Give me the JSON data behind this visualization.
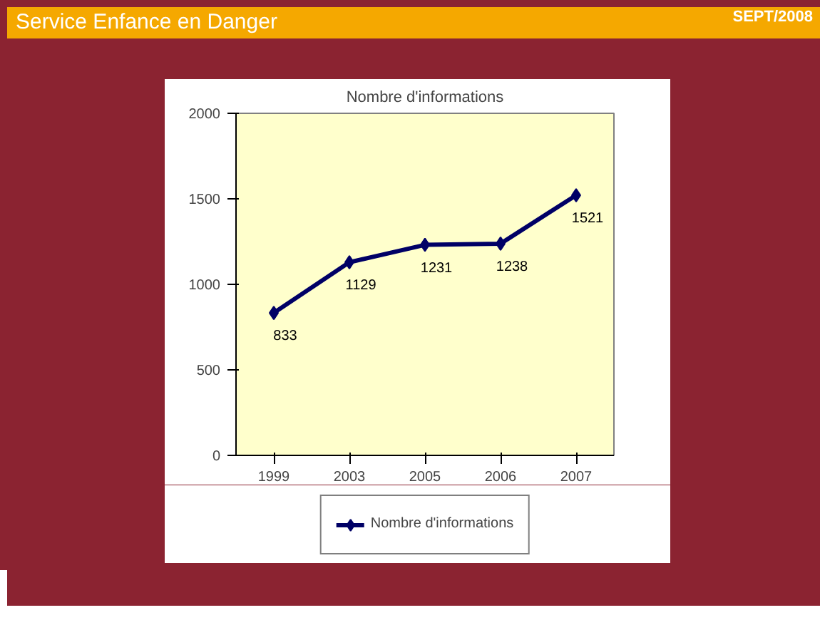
{
  "chart_data": {
    "type": "line",
    "title": "Nombre d'informations",
    "annotations": [
      "Service Enfance en Danger",
      "SEPT/2008"
    ],
    "categories": [
      "1999",
      "2003",
      "2005",
      "2006",
      "2007"
    ],
    "series": [
      {
        "name": "Nombre d'informations",
        "color": "#000066",
        "values": [
          833,
          1129,
          1231,
          1238,
          1521
        ]
      }
    ],
    "ylim": [
      0,
      2000
    ],
    "yticks": [
      0,
      500,
      1000,
      1500,
      2000
    ],
    "grid": false,
    "legend": "bottom",
    "marker": "diamond",
    "line_style": "solid",
    "data_labels": true
  }
}
